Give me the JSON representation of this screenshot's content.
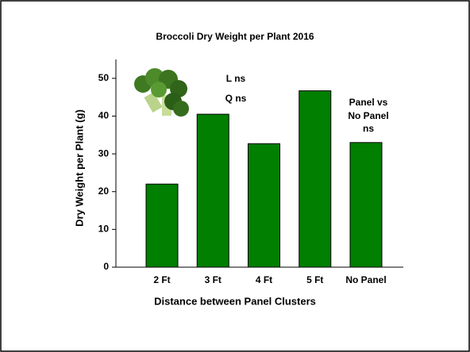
{
  "chart_data": {
    "type": "bar",
    "title": "Broccoli Dry Weight per Plant 2016",
    "x_label": "Distance between Panel Clusters",
    "y_label": "Dry Weight per Plant (g)",
    "categories": [
      "2 Ft",
      "3 Ft",
      "4 Ft",
      "5 Ft",
      "No Panel"
    ],
    "values": [
      22,
      40.5,
      32.7,
      46.7,
      33
    ],
    "color": "#007f00",
    "ylim": [
      0,
      55
    ],
    "yticks": [
      0,
      10,
      20,
      30,
      40,
      50
    ],
    "annotations": [
      "L ns",
      "Q ns",
      "Panel vs",
      "No Panel",
      "ns"
    ]
  }
}
